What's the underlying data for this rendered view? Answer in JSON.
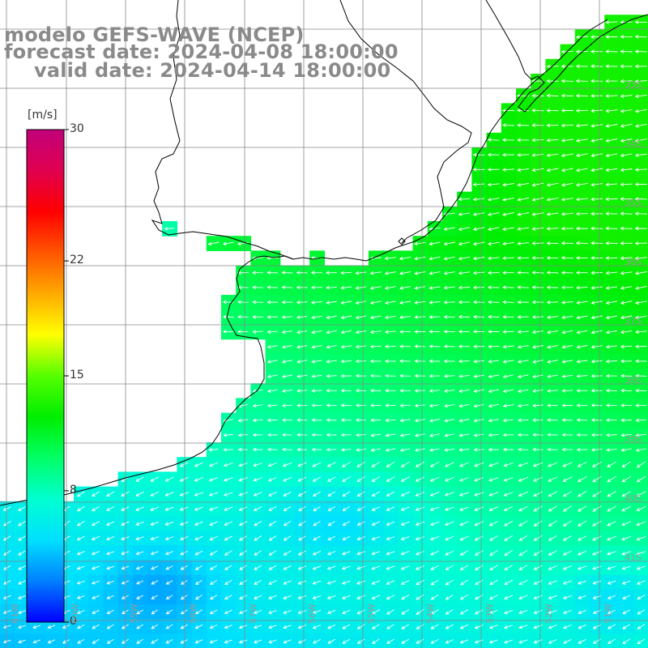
{
  "title": {
    "line1": "modelo GEFS-WAVE (NCEP)",
    "line2": "forecast date: 2024-04-08 18:00:00",
    "line3": "valid date: 2024-04-14 18:00:00"
  },
  "colorbar": {
    "unit": "[m/s]",
    "min": 0,
    "max": 30,
    "ticks": [
      "0",
      "8",
      "15",
      "22",
      "30"
    ],
    "tick_values": [
      0,
      8,
      15,
      22,
      30
    ],
    "colors": [
      "#0000ff",
      "#0080ff",
      "#00e0ff",
      "#00ffd0",
      "#00ff66",
      "#00ee00",
      "#55ff00",
      "#ffff00",
      "#ffaa00",
      "#ff5500",
      "#ff0000",
      "#e00050",
      "#c0007a"
    ]
  },
  "grid": {
    "lat_labels": [
      "33S",
      "34S",
      "35S",
      "36S",
      "37S",
      "38S",
      "39S",
      "40S",
      "41S"
    ],
    "lat_values": [
      33,
      34,
      35,
      36,
      37,
      38,
      39,
      40,
      41
    ],
    "lon_labels": [
      "61W",
      "60W",
      "59W",
      "58W",
      "57W",
      "56W",
      "55W",
      "54W",
      "53W",
      "52W",
      "51W"
    ],
    "lon_values": [
      61,
      60,
      59,
      58,
      57,
      56,
      55,
      54,
      53,
      52,
      51
    ]
  },
  "style": {
    "land_color": "#ffffff",
    "grid_color": "#888888",
    "arrow_color": "#ffffff",
    "coast_color": "#000000",
    "title_color": "#8a8a8a"
  }
}
